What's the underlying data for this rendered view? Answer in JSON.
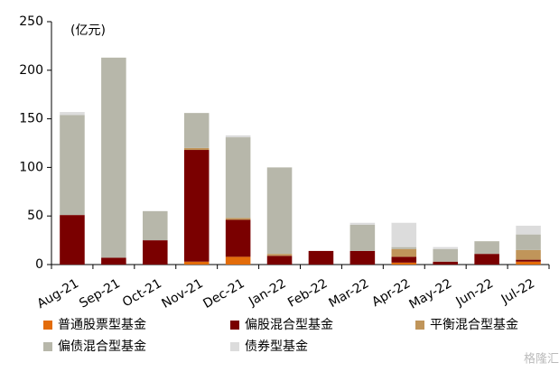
{
  "chart_data": {
    "type": "stacked_bar",
    "annotation": "(亿元)",
    "watermark": "格隆汇",
    "categories": [
      "Aug-21",
      "Sep-21",
      "Oct-21",
      "Nov-21",
      "Dec-21",
      "Jan-22",
      "Feb-22",
      "Mar-22",
      "Apr-22",
      "May-22",
      "Jun-22",
      "Jul-22"
    ],
    "series": [
      {
        "name": "普通股票型基金",
        "color": "#e36c0a",
        "values": [
          0,
          0,
          0,
          3,
          8,
          0,
          0,
          0,
          2,
          0,
          0,
          3
        ]
      },
      {
        "name": "偏股混合型基金",
        "color": "#7a0000",
        "values": [
          51,
          7,
          25,
          115,
          38,
          9,
          14,
          14,
          6,
          3,
          11,
          2
        ]
      },
      {
        "name": "平衡混合型基金",
        "color": "#c0955a",
        "values": [
          0,
          0,
          0,
          2,
          2,
          2,
          0,
          0,
          8,
          0,
          0,
          10
        ]
      },
      {
        "name": "偏债混合型基金",
        "color": "#b7b7aa",
        "values": [
          103,
          206,
          30,
          36,
          83,
          89,
          0,
          27,
          2,
          13,
          13,
          16
        ]
      },
      {
        "name": "债券型基金",
        "color": "#dcdcdc",
        "values": [
          3,
          0,
          0,
          0,
          2,
          0,
          0,
          2,
          25,
          2,
          0,
          9
        ]
      }
    ],
    "ylim": [
      0,
      250
    ],
    "yticks": [
      0,
      50,
      100,
      150,
      200,
      250
    ],
    "grid": false
  }
}
